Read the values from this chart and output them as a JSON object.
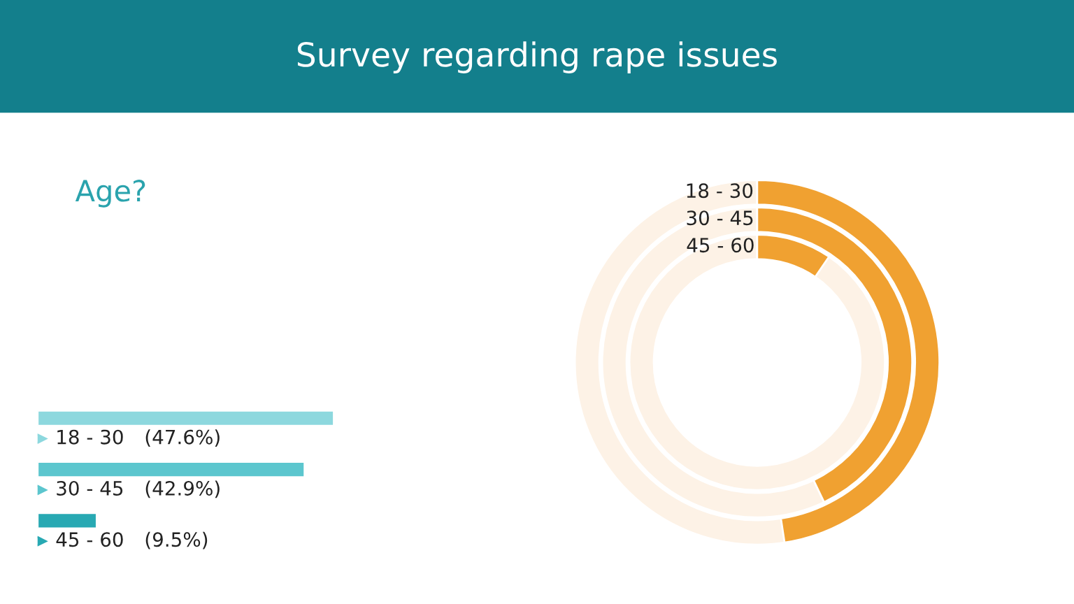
{
  "chart_data": [
    {
      "type": "bar",
      "orientation": "horizontal",
      "title": "Survey regarding rape issues",
      "subtitle": "Age?",
      "categories": [
        "18 - 30",
        "30 - 45",
        "45 - 60"
      ],
      "values": [
        47.6,
        42.9,
        9.5
      ],
      "colors": [
        "#8dd8de",
        "#5cc6ce",
        "#28a9b3"
      ],
      "value_labels": [
        "(47.6%)",
        "(42.9%)",
        "(9.5%)"
      ]
    },
    {
      "type": "other",
      "categories": [
        "18 - 30",
        "30 - 45",
        "45 - 60"
      ],
      "color": "#f0a131"
    }
  ]
}
